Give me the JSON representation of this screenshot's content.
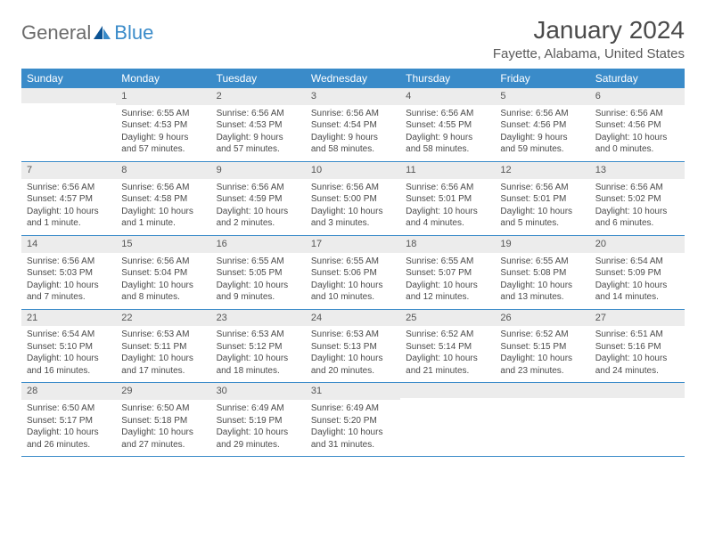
{
  "logo": {
    "text1": "General",
    "text2": "Blue"
  },
  "title": "January 2024",
  "location": "Fayette, Alabama, United States",
  "colors": {
    "header_bg": "#3a8bc9",
    "header_text": "#ffffff",
    "daynum_bg": "#ececec",
    "border": "#3a8bc9",
    "body_text": "#4a4a4a"
  },
  "weekdays": [
    "Sunday",
    "Monday",
    "Tuesday",
    "Wednesday",
    "Thursday",
    "Friday",
    "Saturday"
  ],
  "cells": [
    {
      "day": "",
      "lines": []
    },
    {
      "day": "1",
      "lines": [
        "Sunrise: 6:55 AM",
        "Sunset: 4:53 PM",
        "Daylight: 9 hours and 57 minutes."
      ]
    },
    {
      "day": "2",
      "lines": [
        "Sunrise: 6:56 AM",
        "Sunset: 4:53 PM",
        "Daylight: 9 hours and 57 minutes."
      ]
    },
    {
      "day": "3",
      "lines": [
        "Sunrise: 6:56 AM",
        "Sunset: 4:54 PM",
        "Daylight: 9 hours and 58 minutes."
      ]
    },
    {
      "day": "4",
      "lines": [
        "Sunrise: 6:56 AM",
        "Sunset: 4:55 PM",
        "Daylight: 9 hours and 58 minutes."
      ]
    },
    {
      "day": "5",
      "lines": [
        "Sunrise: 6:56 AM",
        "Sunset: 4:56 PM",
        "Daylight: 9 hours and 59 minutes."
      ]
    },
    {
      "day": "6",
      "lines": [
        "Sunrise: 6:56 AM",
        "Sunset: 4:56 PM",
        "Daylight: 10 hours and 0 minutes."
      ]
    },
    {
      "day": "7",
      "lines": [
        "Sunrise: 6:56 AM",
        "Sunset: 4:57 PM",
        "Daylight: 10 hours and 1 minute."
      ]
    },
    {
      "day": "8",
      "lines": [
        "Sunrise: 6:56 AM",
        "Sunset: 4:58 PM",
        "Daylight: 10 hours and 1 minute."
      ]
    },
    {
      "day": "9",
      "lines": [
        "Sunrise: 6:56 AM",
        "Sunset: 4:59 PM",
        "Daylight: 10 hours and 2 minutes."
      ]
    },
    {
      "day": "10",
      "lines": [
        "Sunrise: 6:56 AM",
        "Sunset: 5:00 PM",
        "Daylight: 10 hours and 3 minutes."
      ]
    },
    {
      "day": "11",
      "lines": [
        "Sunrise: 6:56 AM",
        "Sunset: 5:01 PM",
        "Daylight: 10 hours and 4 minutes."
      ]
    },
    {
      "day": "12",
      "lines": [
        "Sunrise: 6:56 AM",
        "Sunset: 5:01 PM",
        "Daylight: 10 hours and 5 minutes."
      ]
    },
    {
      "day": "13",
      "lines": [
        "Sunrise: 6:56 AM",
        "Sunset: 5:02 PM",
        "Daylight: 10 hours and 6 minutes."
      ]
    },
    {
      "day": "14",
      "lines": [
        "Sunrise: 6:56 AM",
        "Sunset: 5:03 PM",
        "Daylight: 10 hours and 7 minutes."
      ]
    },
    {
      "day": "15",
      "lines": [
        "Sunrise: 6:56 AM",
        "Sunset: 5:04 PM",
        "Daylight: 10 hours and 8 minutes."
      ]
    },
    {
      "day": "16",
      "lines": [
        "Sunrise: 6:55 AM",
        "Sunset: 5:05 PM",
        "Daylight: 10 hours and 9 minutes."
      ]
    },
    {
      "day": "17",
      "lines": [
        "Sunrise: 6:55 AM",
        "Sunset: 5:06 PM",
        "Daylight: 10 hours and 10 minutes."
      ]
    },
    {
      "day": "18",
      "lines": [
        "Sunrise: 6:55 AM",
        "Sunset: 5:07 PM",
        "Daylight: 10 hours and 12 minutes."
      ]
    },
    {
      "day": "19",
      "lines": [
        "Sunrise: 6:55 AM",
        "Sunset: 5:08 PM",
        "Daylight: 10 hours and 13 minutes."
      ]
    },
    {
      "day": "20",
      "lines": [
        "Sunrise: 6:54 AM",
        "Sunset: 5:09 PM",
        "Daylight: 10 hours and 14 minutes."
      ]
    },
    {
      "day": "21",
      "lines": [
        "Sunrise: 6:54 AM",
        "Sunset: 5:10 PM",
        "Daylight: 10 hours and 16 minutes."
      ]
    },
    {
      "day": "22",
      "lines": [
        "Sunrise: 6:53 AM",
        "Sunset: 5:11 PM",
        "Daylight: 10 hours and 17 minutes."
      ]
    },
    {
      "day": "23",
      "lines": [
        "Sunrise: 6:53 AM",
        "Sunset: 5:12 PM",
        "Daylight: 10 hours and 18 minutes."
      ]
    },
    {
      "day": "24",
      "lines": [
        "Sunrise: 6:53 AM",
        "Sunset: 5:13 PM",
        "Daylight: 10 hours and 20 minutes."
      ]
    },
    {
      "day": "25",
      "lines": [
        "Sunrise: 6:52 AM",
        "Sunset: 5:14 PM",
        "Daylight: 10 hours and 21 minutes."
      ]
    },
    {
      "day": "26",
      "lines": [
        "Sunrise: 6:52 AM",
        "Sunset: 5:15 PM",
        "Daylight: 10 hours and 23 minutes."
      ]
    },
    {
      "day": "27",
      "lines": [
        "Sunrise: 6:51 AM",
        "Sunset: 5:16 PM",
        "Daylight: 10 hours and 24 minutes."
      ]
    },
    {
      "day": "28",
      "lines": [
        "Sunrise: 6:50 AM",
        "Sunset: 5:17 PM",
        "Daylight: 10 hours and 26 minutes."
      ]
    },
    {
      "day": "29",
      "lines": [
        "Sunrise: 6:50 AM",
        "Sunset: 5:18 PM",
        "Daylight: 10 hours and 27 minutes."
      ]
    },
    {
      "day": "30",
      "lines": [
        "Sunrise: 6:49 AM",
        "Sunset: 5:19 PM",
        "Daylight: 10 hours and 29 minutes."
      ]
    },
    {
      "day": "31",
      "lines": [
        "Sunrise: 6:49 AM",
        "Sunset: 5:20 PM",
        "Daylight: 10 hours and 31 minutes."
      ]
    },
    {
      "day": "",
      "lines": []
    },
    {
      "day": "",
      "lines": []
    },
    {
      "day": "",
      "lines": []
    }
  ]
}
